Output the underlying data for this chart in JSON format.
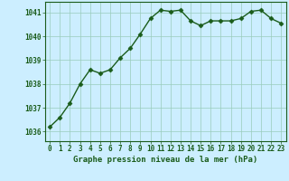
{
  "x": [
    0,
    1,
    2,
    3,
    4,
    5,
    6,
    7,
    8,
    9,
    10,
    11,
    12,
    13,
    14,
    15,
    16,
    17,
    18,
    19,
    20,
    21,
    22,
    23
  ],
  "y": [
    1036.2,
    1036.6,
    1037.2,
    1038.0,
    1038.6,
    1038.45,
    1038.6,
    1039.1,
    1039.5,
    1040.1,
    1040.75,
    1041.1,
    1041.05,
    1041.1,
    1040.65,
    1040.45,
    1040.65,
    1040.65,
    1040.65,
    1040.75,
    1041.05,
    1041.1,
    1040.75,
    1040.55
  ],
  "line_color": "#1a5c1a",
  "marker": "D",
  "marker_size": 2.5,
  "bg_color": "#cceeff",
  "grid_color": "#99ccbb",
  "xlabel": "Graphe pression niveau de la mer (hPa)",
  "xlabel_fontsize": 6.5,
  "xtick_labels": [
    "0",
    "1",
    "2",
    "3",
    "4",
    "5",
    "6",
    "7",
    "8",
    "9",
    "10",
    "11",
    "12",
    "13",
    "14",
    "15",
    "16",
    "17",
    "18",
    "19",
    "20",
    "21",
    "22",
    "23"
  ],
  "ytick_labels": [
    "1036",
    "1037",
    "1038",
    "1039",
    "1040",
    "1041"
  ],
  "yticks": [
    1036,
    1037,
    1038,
    1039,
    1040,
    1041
  ],
  "ylim": [
    1035.6,
    1041.45
  ],
  "xlim": [
    -0.5,
    23.5
  ],
  "tick_fontsize": 5.5,
  "tick_color": "#1a5c1a",
  "linewidth": 1.0
}
